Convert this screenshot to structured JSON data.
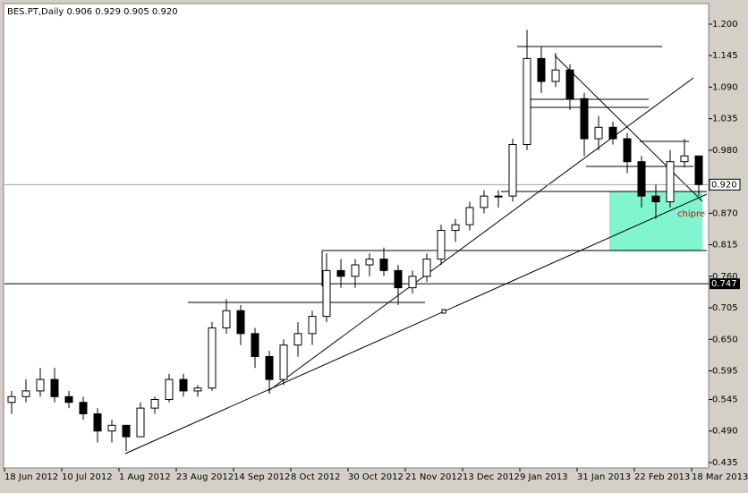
{
  "chart_data": {
    "type": "candlestick",
    "title": "BES.PT,Daily  0.906 0.929 0.905 0.920",
    "annotation": "chipre",
    "bull_color": "#ffffff",
    "bear_color": "#000000",
    "line_color": "#000000",
    "categories": [
      "18 Jun 2012",
      null,
      null,
      null,
      "10 Jul 2012",
      null,
      null,
      null,
      "1 Aug 2012",
      null,
      null,
      null,
      "23 Aug 2012",
      null,
      null,
      null,
      "14 Sep 2012",
      null,
      null,
      null,
      "8 Oct 2012",
      null,
      null,
      null,
      "30 Oct 2012",
      null,
      null,
      null,
      "21 Nov 2012",
      null,
      null,
      null,
      "13 Dec 2012",
      null,
      null,
      null,
      "9 Jan 2013",
      null,
      null,
      null,
      "31 Jan 2013",
      null,
      null,
      null,
      "22 Feb 2013",
      null,
      null,
      null,
      "18 Mar 2013"
    ],
    "candles": [
      [
        0.54,
        0.56,
        0.52,
        0.55
      ],
      [
        0.55,
        0.58,
        0.54,
        0.56
      ],
      [
        0.56,
        0.6,
        0.55,
        0.58
      ],
      [
        0.58,
        0.6,
        0.54,
        0.55
      ],
      [
        0.55,
        0.56,
        0.53,
        0.54
      ],
      [
        0.54,
        0.55,
        0.51,
        0.52
      ],
      [
        0.52,
        0.53,
        0.47,
        0.49
      ],
      [
        0.49,
        0.51,
        0.47,
        0.5
      ],
      [
        0.5,
        0.5,
        0.455,
        0.48
      ],
      [
        0.48,
        0.54,
        0.48,
        0.53
      ],
      [
        0.53,
        0.55,
        0.52,
        0.545
      ],
      [
        0.545,
        0.59,
        0.54,
        0.58
      ],
      [
        0.58,
        0.59,
        0.55,
        0.56
      ],
      [
        0.56,
        0.57,
        0.55,
        0.565
      ],
      [
        0.565,
        0.68,
        0.56,
        0.67
      ],
      [
        0.67,
        0.72,
        0.66,
        0.7
      ],
      [
        0.7,
        0.71,
        0.64,
        0.66
      ],
      [
        0.66,
        0.67,
        0.6,
        0.62
      ],
      [
        0.62,
        0.63,
        0.555,
        0.58
      ],
      [
        0.58,
        0.65,
        0.57,
        0.64
      ],
      [
        0.64,
        0.68,
        0.62,
        0.66
      ],
      [
        0.66,
        0.7,
        0.64,
        0.69
      ],
      [
        0.69,
        0.8,
        0.68,
        0.77
      ],
      [
        0.77,
        0.79,
        0.74,
        0.76
      ],
      [
        0.76,
        0.79,
        0.74,
        0.78
      ],
      [
        0.78,
        0.8,
        0.76,
        0.79
      ],
      [
        0.79,
        0.81,
        0.76,
        0.77
      ],
      [
        0.77,
        0.78,
        0.71,
        0.74
      ],
      [
        0.74,
        0.77,
        0.73,
        0.76
      ],
      [
        0.76,
        0.8,
        0.75,
        0.79
      ],
      [
        0.79,
        0.85,
        0.78,
        0.84
      ],
      [
        0.84,
        0.86,
        0.82,
        0.85
      ],
      [
        0.85,
        0.89,
        0.84,
        0.88
      ],
      [
        0.88,
        0.91,
        0.87,
        0.9
      ],
      [
        0.9,
        0.91,
        0.88,
        0.9
      ],
      [
        0.9,
        1.0,
        0.89,
        0.99
      ],
      [
        0.99,
        1.19,
        0.98,
        1.14
      ],
      [
        1.14,
        1.16,
        1.08,
        1.1
      ],
      [
        1.1,
        1.15,
        1.09,
        1.12
      ],
      [
        1.12,
        1.13,
        1.05,
        1.07
      ],
      [
        1.07,
        1.08,
        0.97,
        1.0
      ],
      [
        1.0,
        1.04,
        0.98,
        1.02
      ],
      [
        1.02,
        1.03,
        0.99,
        1.0
      ],
      [
        1.0,
        1.01,
        0.94,
        0.96
      ],
      [
        0.96,
        0.97,
        0.88,
        0.9
      ],
      [
        0.9,
        0.92,
        0.86,
        0.89
      ],
      [
        0.89,
        0.98,
        0.88,
        0.96
      ],
      [
        0.96,
        1.0,
        0.95,
        0.97
      ],
      [
        0.97,
        0.97,
        0.9,
        0.92
      ]
    ],
    "ylim": [
      0.4256,
      1.2343
    ],
    "yticks": [
      {
        "value": 1.2,
        "label": "1.200"
      },
      {
        "value": 1.145,
        "label": "1.145"
      },
      {
        "value": 1.09,
        "label": "1.090"
      },
      {
        "value": 1.035,
        "label": "1.035"
      },
      {
        "value": 0.98,
        "label": "0.980"
      },
      {
        "value": 0.87,
        "label": "0.870"
      },
      {
        "value": 0.815,
        "label": "0.815"
      },
      {
        "value": 0.76,
        "label": "0.760"
      },
      {
        "value": 0.705,
        "label": "0.705"
      },
      {
        "value": 0.65,
        "label": "0.650"
      },
      {
        "value": 0.595,
        "label": "0.595"
      },
      {
        "value": 0.545,
        "label": "0.545"
      },
      {
        "value": 0.49,
        "label": "0.490"
      },
      {
        "value": 0.435,
        "label": "0.435"
      }
    ],
    "price_marker": {
      "value": 0.92,
      "label": "0.920"
    },
    "level": {
      "value": 0.747,
      "label": "0.747"
    }
  }
}
